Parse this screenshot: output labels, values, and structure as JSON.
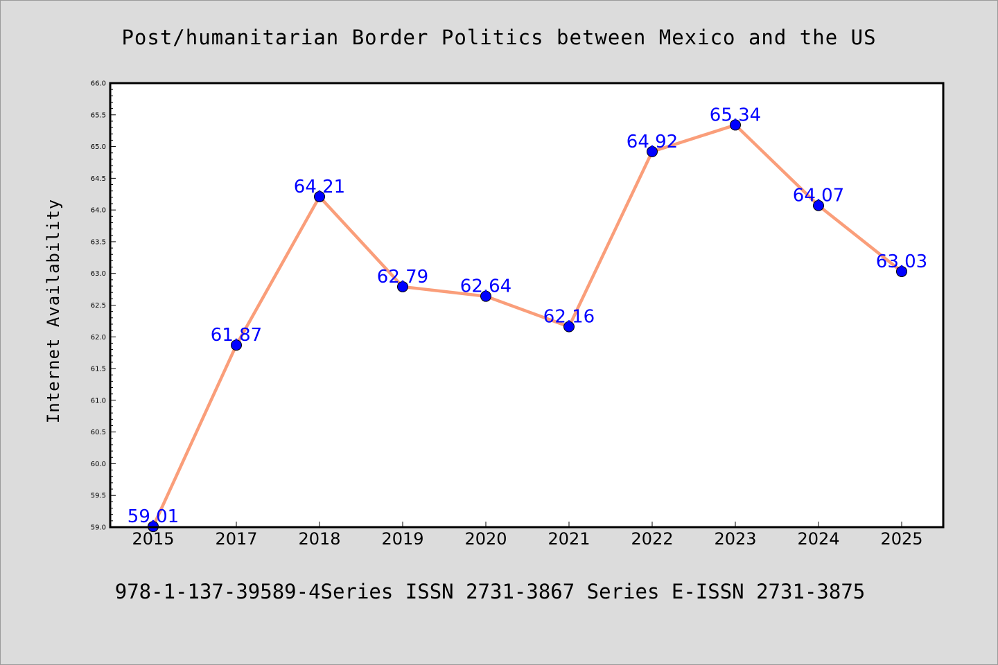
{
  "chart_data": {
    "type": "line",
    "title": "Post/humanitarian Border Politics between Mexico and the US",
    "xlabel": "",
    "ylabel": "Internet Availability",
    "footer": "978-1-137-39589-4Series ISSN 2731-3867 Series E-ISSN 2731-3875",
    "categories": [
      "2015",
      "2017",
      "2018",
      "2019",
      "2020",
      "2021",
      "2022",
      "2023",
      "2024",
      "2025"
    ],
    "series": [
      {
        "values": [
          59.01,
          61.87,
          64.21,
          62.79,
          62.64,
          62.16,
          64.92,
          65.34,
          64.07,
          63.03
        ],
        "labels": [
          "59.01",
          "61.87",
          "64.21",
          "62.79",
          "62.64",
          "62.16",
          "64.92",
          "65.34",
          "64.07",
          "63.03"
        ]
      }
    ],
    "ylim": [
      59.0,
      66.0
    ],
    "yticks": [
      "59.0",
      "59.5",
      "60.0",
      "60.5",
      "61.0",
      "61.5",
      "62.0",
      "62.5",
      "63.0",
      "63.5",
      "64.0",
      "64.5",
      "65.0",
      "65.5",
      "66.0"
    ],
    "grid": false,
    "colors": {
      "line": "#fa9e7a",
      "marker": "#0000ff",
      "data_label": "#0000ff",
      "figure_background": "#dcdcdc",
      "plot_background": "#ffffff"
    }
  }
}
